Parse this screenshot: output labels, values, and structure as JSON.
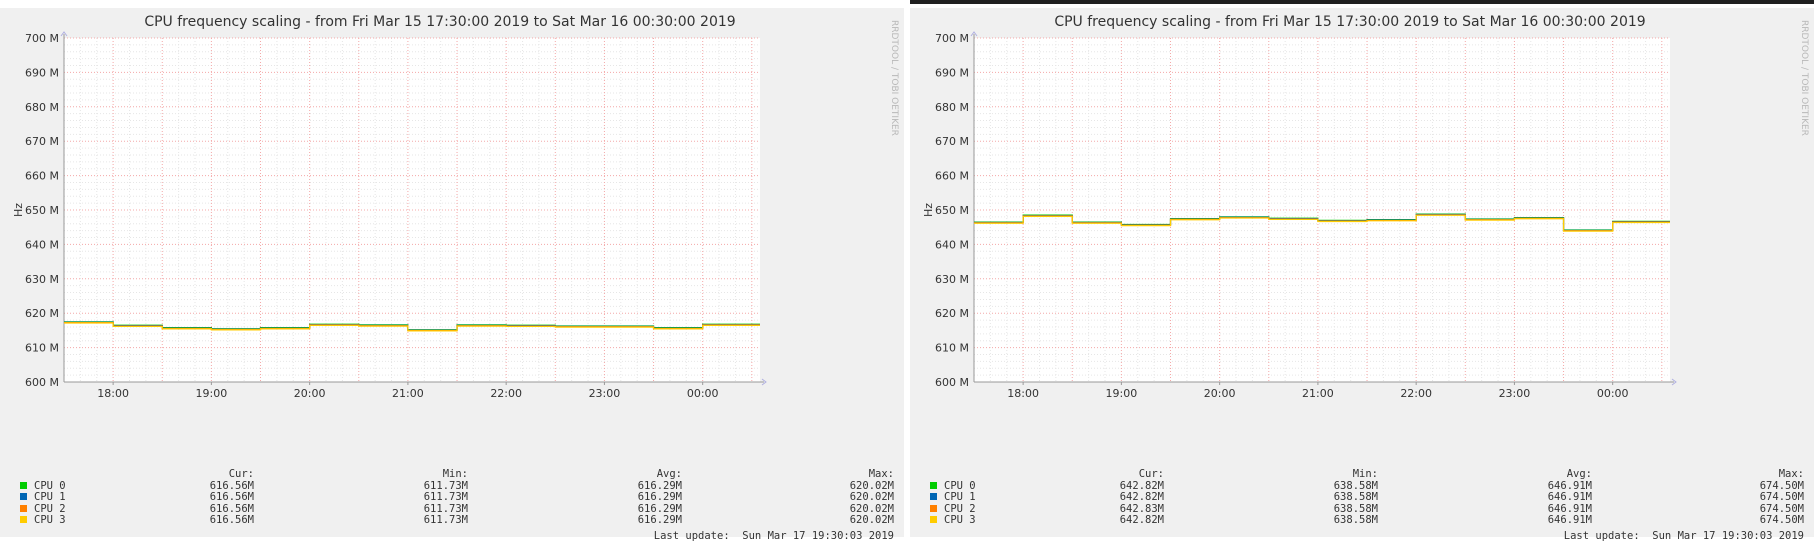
{
  "legend_header": {
    "cur": "Cur:",
    "min": "Min:",
    "avg": "Avg:",
    "max": "Max:"
  },
  "colors": {
    "CPU 0": "#00cc00",
    "CPU 1": "#0066b3",
    "CPU 2": "#ff8000",
    "CPU 3": "#ffcc00",
    "grid_major": "#f4a8a8",
    "grid_minor": "#e6e6e6"
  },
  "chart_data": [
    {
      "type": "line",
      "title": "CPU frequency scaling - from Fri Mar 15 17:30:00 2019 to Sat Mar 16 00:30:00 2019",
      "ylabel": "Hz",
      "xlabel": "",
      "ylim": [
        600,
        700
      ],
      "y_unit": "M",
      "yticks": [
        "600 M",
        "610 M",
        "620 M",
        "630 M",
        "640 M",
        "650 M",
        "660 M",
        "670 M",
        "680 M",
        "690 M",
        "700 M"
      ],
      "xlim": [
        "17:30",
        "00:35"
      ],
      "xticks": [
        "18:00",
        "19:00",
        "20:00",
        "21:00",
        "22:00",
        "23:00",
        "00:00"
      ],
      "grid": true,
      "watermark": "RRDTOOL / TOBI OETIKER",
      "series": [
        {
          "name": "CPU 0",
          "cur": "616.56M",
          "min": "611.73M",
          "avg": "616.29M",
          "max": "620.02M"
        },
        {
          "name": "CPU 1",
          "cur": "616.56M",
          "min": "611.73M",
          "avg": "616.29M",
          "max": "620.02M"
        },
        {
          "name": "CPU 2",
          "cur": "616.56M",
          "min": "611.73M",
          "avg": "616.29M",
          "max": "620.02M"
        },
        {
          "name": "CPU 3",
          "cur": "616.56M",
          "min": "611.73M",
          "avg": "616.29M",
          "max": "620.02M"
        }
      ],
      "line": {
        "x": [
          "17:30",
          "18:00",
          "18:30",
          "19:00",
          "19:30",
          "20:00",
          "20:30",
          "21:00",
          "21:30",
          "22:00",
          "22:30",
          "23:00",
          "23:30",
          "00:00",
          "00:35"
        ],
        "y": [
          617.5,
          616.5,
          615.8,
          615.5,
          615.8,
          616.8,
          616.6,
          615.2,
          616.6,
          616.5,
          616.3,
          616.3,
          615.8,
          616.8,
          616.8
        ]
      },
      "last_update": "Last update:  Sun Mar 17 19:30:03 2019"
    },
    {
      "type": "line",
      "title": "CPU frequency scaling - from Fri Mar 15 17:30:00 2019 to Sat Mar 16 00:30:00 2019",
      "ylabel": "Hz",
      "xlabel": "",
      "ylim": [
        600,
        700
      ],
      "y_unit": "M",
      "yticks": [
        "600 M",
        "610 M",
        "620 M",
        "630 M",
        "640 M",
        "650 M",
        "660 M",
        "670 M",
        "680 M",
        "690 M",
        "700 M"
      ],
      "xlim": [
        "17:30",
        "00:35"
      ],
      "xticks": [
        "18:00",
        "19:00",
        "20:00",
        "21:00",
        "22:00",
        "23:00",
        "00:00"
      ],
      "grid": true,
      "watermark": "RRDTOOL / TOBI OETIKER",
      "series": [
        {
          "name": "CPU 0",
          "cur": "642.82M",
          "min": "638.58M",
          "avg": "646.91M",
          "max": "674.50M"
        },
        {
          "name": "CPU 1",
          "cur": "642.82M",
          "min": "638.58M",
          "avg": "646.91M",
          "max": "674.50M"
        },
        {
          "name": "CPU 2",
          "cur": "642.83M",
          "min": "638.58M",
          "avg": "646.91M",
          "max": "674.50M"
        },
        {
          "name": "CPU 3",
          "cur": "642.82M",
          "min": "638.58M",
          "avg": "646.91M",
          "max": "674.50M"
        }
      ],
      "line": {
        "x": [
          "17:30",
          "18:00",
          "18:30",
          "19:00",
          "19:30",
          "20:00",
          "20:30",
          "21:00",
          "21:30",
          "22:00",
          "22:30",
          "23:00",
          "23:30",
          "00:00",
          "00:35"
        ],
        "y": [
          646.5,
          648.5,
          646.5,
          645.8,
          647.5,
          648.0,
          647.6,
          647.0,
          647.2,
          648.8,
          647.4,
          647.8,
          644.2,
          646.7,
          646.7
        ]
      },
      "last_update": "Last update:  Sun Mar 17 19:30:03 2019"
    }
  ]
}
